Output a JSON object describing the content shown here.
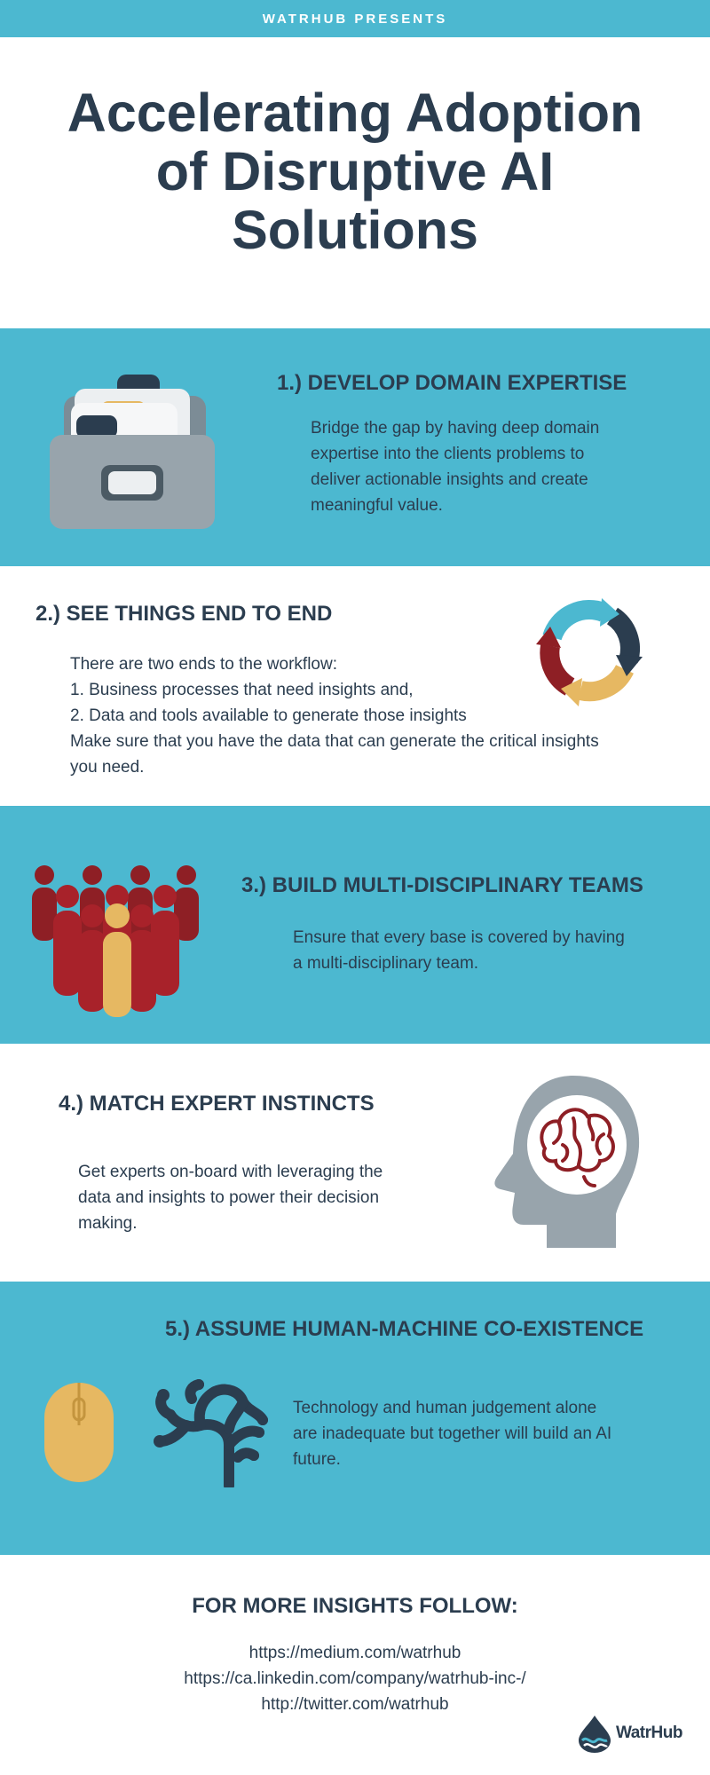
{
  "header": {
    "presenter": "WATRHUB PRESENTS"
  },
  "title": {
    "line1": "Accelerating Adoption",
    "line2": "of Disruptive AI",
    "line3": "Solutions"
  },
  "sections": [
    {
      "heading": "1.) DEVELOP DOMAIN EXPERTISE",
      "body": [
        "Bridge the gap by having deep domain",
        "expertise into the clients problems to",
        "deliver actionable insights and create",
        "meaningful value."
      ],
      "icon": "file-cabinet-icon"
    },
    {
      "heading": "2.) SEE THINGS END TO END",
      "body": [
        "There are two ends to the workflow:",
        "1. Business processes that need insights and,",
        "2. Data and tools available to generate those insights"
      ],
      "body2": [
        "Make sure that you have the data that can generate the critical insights",
        "you need."
      ],
      "icon": "cycle-arrows-icon"
    },
    {
      "heading": "3.)  BUILD MULTI-DISCIPLINARY TEAMS",
      "body": [
        "Ensure that every base is covered by having",
        "a multi-disciplinary team."
      ],
      "icon": "team-people-icon"
    },
    {
      "heading": "4.) MATCH EXPERT INSTINCTS",
      "body": [
        "Get experts on-board with leveraging the",
        "data and insights to power their decision",
        "making."
      ],
      "icon": "head-brain-icon"
    },
    {
      "heading": "5.) ASSUME HUMAN-MACHINE CO-EXISTENCE",
      "body": [
        "Technology and human judgement alone",
        "are inadequate but together will build an AI",
        "future."
      ],
      "icons": [
        "computer-mouse-icon",
        "neural-tree-icon"
      ]
    }
  ],
  "footer": {
    "heading": "FOR MORE INSIGHTS FOLLOW:",
    "links": [
      "https://medium.com/watrhub",
      "https://ca.linkedin.com/company/watrhub-inc-/",
      "http://twitter.com/watrhub"
    ],
    "logo_text": "WatrHub"
  },
  "colors": {
    "teal": "#4cb8d0",
    "navy": "#2b3d4f",
    "dark_red": "#8e1f25",
    "gold": "#e6b862",
    "gray": "#98a4ac"
  }
}
